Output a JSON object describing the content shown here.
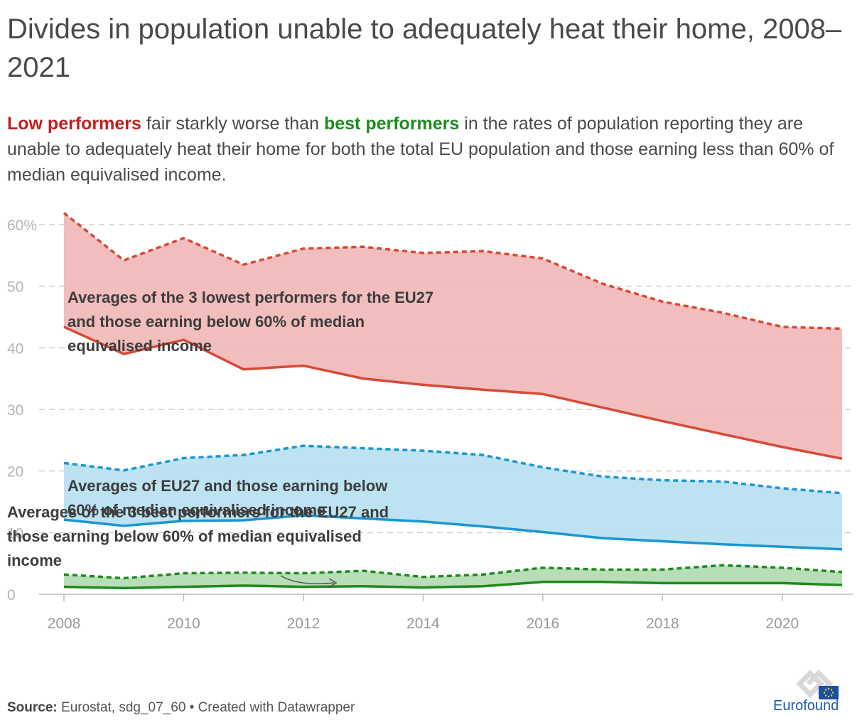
{
  "header": {
    "title": "Divides in population unable to adequately heat their home, 2008–2021",
    "subtitle": {
      "low_label": "Low performers",
      "mid1": " fair starkly worse than ",
      "best_label": "best performers",
      "rest": " in the rates of population reporting they are unable to adequately heat their home for both the total EU population and those earning less than 60% of median equivalised income."
    }
  },
  "footer": {
    "source_label": "Source:",
    "source_text": " Eurostat, sdg_07_60 • Created with Datawrapper",
    "logo_text": "Eurofound"
  },
  "chart_data": {
    "type": "area",
    "x": [
      2008,
      2009,
      2010,
      2011,
      2012,
      2013,
      2014,
      2015,
      2016,
      2017,
      2018,
      2019,
      2020,
      2021
    ],
    "x_ticks": [
      2008,
      2010,
      2012,
      2014,
      2016,
      2018,
      2020
    ],
    "y_ticks": [
      0,
      10,
      20,
      30,
      40,
      50,
      60
    ],
    "y_tick_labels": [
      "0",
      "10",
      "20",
      "30",
      "40",
      "50",
      "60%"
    ],
    "ylim": [
      0,
      62
    ],
    "grid": true,
    "groups": [
      {
        "label": "Averages of the 3 lowest performers for the EU27 and those earning below 60% of median equivalised income",
        "color": "#d64a35",
        "fill": "#f0b9b9",
        "below_60": [
          61.9,
          54.2,
          57.8,
          53.5,
          56.1,
          56.4,
          55.4,
          55.7,
          54.5,
          50.4,
          47.5,
          45.7,
          43.4,
          43.1
        ],
        "total": [
          43.4,
          39.0,
          41.3,
          36.5,
          37.1,
          35.0,
          34.0,
          33.2,
          32.5,
          30.3,
          28.1,
          26.0,
          23.9,
          22.0
        ]
      },
      {
        "label": "Averages of EU27 and those earning below 60% of median equivalised income",
        "color": "#1a96d2",
        "fill": "#b9e0f0",
        "below_60": [
          21.3,
          20.1,
          22.1,
          22.6,
          24.1,
          23.7,
          23.3,
          22.6,
          20.6,
          19.1,
          18.5,
          18.3,
          17.2,
          16.4
        ],
        "total": [
          12.1,
          11.1,
          11.9,
          12.0,
          12.8,
          12.3,
          11.8,
          11.0,
          10.1,
          9.1,
          8.6,
          8.1,
          7.7,
          7.3
        ]
      },
      {
        "label": "Averages of the 3 best performers for the EU27 and those earning below 60% of median equivalised income",
        "color": "#1e8a1e",
        "fill": "#b4dcb4",
        "below_60": [
          3.2,
          2.6,
          3.4,
          3.5,
          3.4,
          3.8,
          2.8,
          3.2,
          4.3,
          4.0,
          4.0,
          4.7,
          4.3,
          3.6
        ],
        "total": [
          1.2,
          1.0,
          1.2,
          1.4,
          1.2,
          1.3,
          1.1,
          1.3,
          2.0,
          2.0,
          1.8,
          1.8,
          1.8,
          1.5
        ]
      }
    ]
  }
}
